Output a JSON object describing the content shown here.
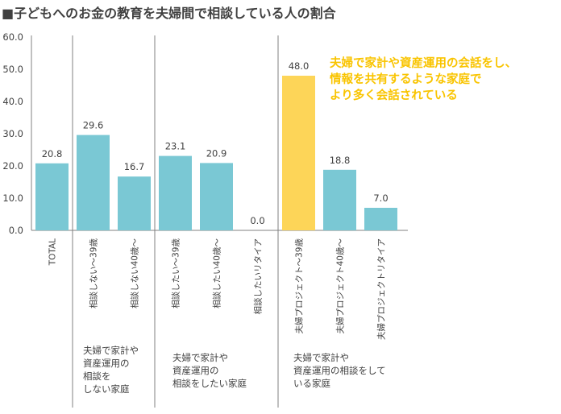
{
  "chart_data": {
    "type": "bar",
    "title": "■子どもへのお金の教育を夫婦間で相談している人の割合",
    "ylim": [
      0,
      60
    ],
    "yticks": [
      "0.0",
      "10.0",
      "20.0",
      "30.0",
      "40.0",
      "50.0",
      "60.0"
    ],
    "categories": [
      "TOTAL",
      "相談しない～39歳",
      "相談しない40歳～",
      "相談したい～39歳",
      "相談したい40歳～",
      "相談したいリタイア",
      "夫婦プロジェクト～39歳",
      "夫婦プロジェクト40歳～",
      "夫婦プロジェクトリタイア"
    ],
    "values": [
      20.8,
      29.6,
      16.7,
      23.1,
      20.9,
      0.0,
      48.0,
      18.8,
      7.0
    ],
    "value_labels": [
      "20.8",
      "29.6",
      "16.7",
      "23.1",
      "20.9",
      "0.0",
      "48.0",
      "18.8",
      "7.0"
    ],
    "highlight_index": 6,
    "colors": {
      "bar": "#7ac8d4",
      "highlight": "#fdd558",
      "annotation": "#f9c400",
      "axis": "#808080"
    },
    "groups": [
      {
        "lines": [
          "夫婦で家計や",
          "資産運用の",
          "相談を",
          "しない家庭"
        ]
      },
      {
        "lines": [
          "夫婦で家計や",
          "資産運用の",
          "相談をしたい家庭"
        ]
      },
      {
        "lines": [
          "夫婦で家計や",
          "資産運用の相談をして",
          "いる家庭"
        ]
      }
    ],
    "annotation": [
      "夫婦で家計や資産運用の会話をし、",
      "情報を共有するような家庭で",
      "より多く会話されている"
    ],
    "grid": false
  }
}
